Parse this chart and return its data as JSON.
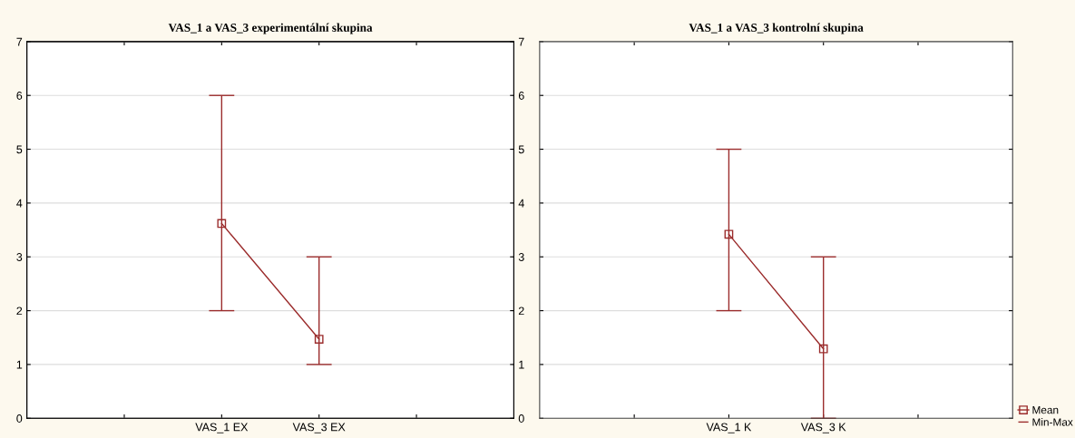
{
  "chart_data": [
    {
      "type": "line",
      "title": "VAS_1 a VAS_3 experimentální skupina",
      "categories": [
        null,
        "VAS_1 EX",
        "VAS_3 EX",
        null
      ],
      "series": [
        {
          "color": "#9b2c2c",
          "values": [
            null,
            3.62,
            1.47,
            null
          ],
          "errors": [
            null,
            [
              2,
              6
            ],
            [
              1,
              3
            ],
            null
          ]
        }
      ],
      "ylim": [
        0,
        7
      ],
      "yticks": [
        0,
        1,
        2,
        3,
        4,
        5,
        6,
        7
      ],
      "y2lim": [
        0,
        7
      ],
      "y2ticks": [
        0,
        1,
        2,
        3,
        4,
        5,
        6,
        7
      ],
      "grid": "y",
      "marker": "square",
      "line_style": "solid",
      "legend": false
    },
    {
      "type": "line",
      "title": "VAS_1 a VAS_3 kontrolní skupina",
      "categories": [
        null,
        "VAS_1 K",
        "VAS_3 K",
        null
      ],
      "series": [
        {
          "name": "Mean",
          "color": "#9b2c2c",
          "values": [
            null,
            3.42,
            1.29,
            null
          ],
          "errors": [
            null,
            [
              2,
              5
            ],
            [
              0,
              3
            ],
            null
          ]
        }
      ],
      "ylim": [
        0,
        7
      ],
      "yticks": [
        0,
        1,
        2,
        3,
        4,
        5,
        6,
        7
      ],
      "tick_labels": "x",
      "grid": "y",
      "marker": "square",
      "line_style": "solid",
      "legend": "bottom right",
      "annotations": [
        "Min-Max"
      ]
    }
  ]
}
